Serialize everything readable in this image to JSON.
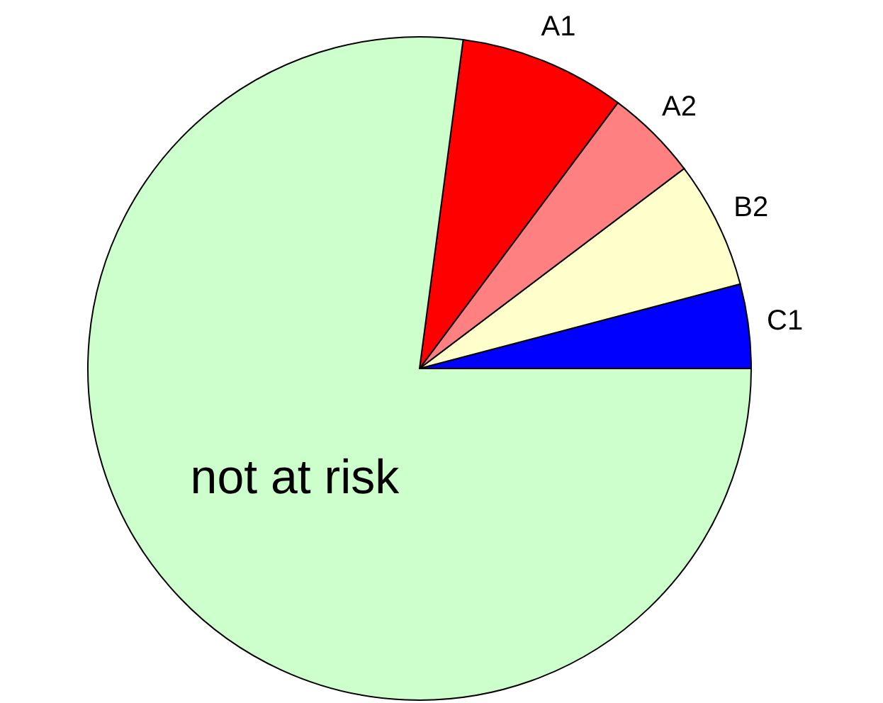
{
  "chart_data": {
    "type": "pie",
    "categories": [
      "C1",
      "B2",
      "A2",
      "A1",
      "not at risk"
    ],
    "values": [
      4.1,
      6.2,
      4.5,
      8.1,
      77.1
    ],
    "colors": [
      "#0000ff",
      "#ffffcc",
      "#ff8080",
      "#ff0000",
      "#ccffcc"
    ],
    "legend": false
  }
}
